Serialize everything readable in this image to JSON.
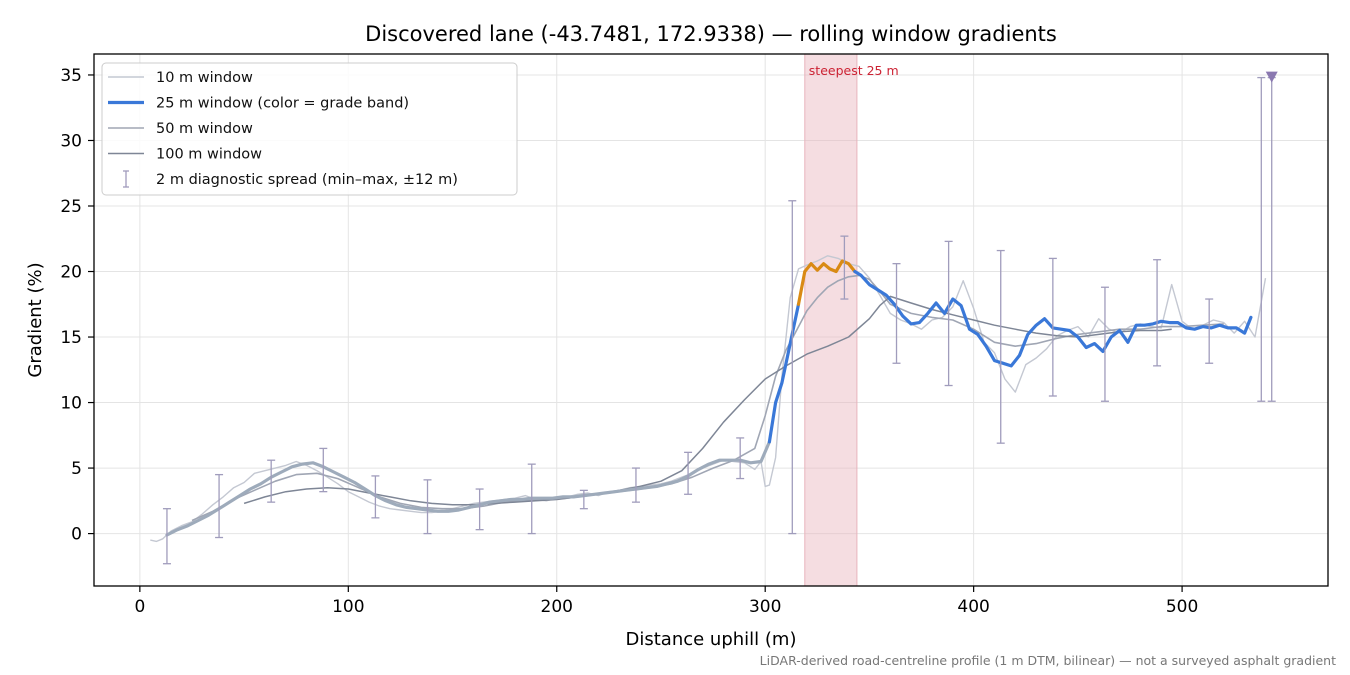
{
  "chart_data": {
    "type": "line",
    "title": "Discovered lane (-43.7481, 172.9338) — rolling window gradients",
    "xlabel": "Distance uphill (m)",
    "ylabel": "Gradient (%)",
    "xlim": [
      -22,
      570
    ],
    "ylim": [
      -4,
      36.6
    ],
    "xticks": [
      0,
      100,
      200,
      300,
      400,
      500
    ],
    "yticks": [
      0,
      5,
      10,
      15,
      20,
      25,
      30,
      35
    ],
    "grid": true,
    "legend_position": "upper-left",
    "footnote": "LiDAR-derived road-centreline profile (1 m DTM, bilinear) — not a surveyed asphalt gradient",
    "highlight": {
      "label": "steepest 25 m",
      "x_range": [
        319,
        344
      ]
    },
    "colors": {
      "w10": "#c4c8d2",
      "w25": "#3a78d8",
      "w25_steep": "#d98a14",
      "w25_early": "#9eabbb",
      "w50": "#a0a6b4",
      "w100": "#7e8696",
      "spread": "#a09cbc",
      "marker": "#8a78b0",
      "highlight": "#e8b4bc"
    },
    "marker": {
      "x": 543,
      "y": 34.8
    },
    "series": [
      {
        "name": "10 m window",
        "x": [
          5,
          8,
          11,
          15,
          20,
          25,
          30,
          35,
          40,
          45,
          50,
          55,
          60,
          65,
          70,
          75,
          80,
          85,
          90,
          95,
          100,
          105,
          110,
          115,
          120,
          125,
          130,
          135,
          140,
          145,
          150,
          155,
          160,
          165,
          170,
          175,
          180,
          185,
          190,
          195,
          200,
          205,
          210,
          215,
          220,
          225,
          230,
          235,
          240,
          245,
          250,
          255,
          260,
          265,
          270,
          275,
          280,
          285,
          290,
          295,
          298,
          300,
          302,
          305,
          308,
          312,
          316,
          320,
          325,
          330,
          335,
          340,
          345,
          350,
          355,
          360,
          365,
          370,
          375,
          380,
          385,
          390,
          395,
          400,
          405,
          410,
          415,
          420,
          425,
          430,
          435,
          440,
          445,
          450,
          455,
          460,
          465,
          470,
          475,
          480,
          485,
          490,
          495,
          500,
          505,
          510,
          515,
          520,
          525,
          530,
          535,
          540
        ],
        "y": [
          -0.5,
          -0.6,
          -0.4,
          0.2,
          0.6,
          0.9,
          1.5,
          2.2,
          2.8,
          3.5,
          3.9,
          4.6,
          4.8,
          5.0,
          5.2,
          5.5,
          5.2,
          4.8,
          4.3,
          3.8,
          3.2,
          2.8,
          2.4,
          2.1,
          1.9,
          1.8,
          1.7,
          1.6,
          1.6,
          1.7,
          1.9,
          2.1,
          2.3,
          2.4,
          2.5,
          2.6,
          2.7,
          2.9,
          2.6,
          2.5,
          2.7,
          2.8,
          3.0,
          3.1,
          2.9,
          3.2,
          3.3,
          3.5,
          3.6,
          3.7,
          3.8,
          4.0,
          4.3,
          4.6,
          5.0,
          5.3,
          5.6,
          5.5,
          5.4,
          4.9,
          5.5,
          3.6,
          3.7,
          5.8,
          12.0,
          18.0,
          20.2,
          20.5,
          20.8,
          21.2,
          21.0,
          20.6,
          20.4,
          19.5,
          18.2,
          16.8,
          16.3,
          16.0,
          15.6,
          16.3,
          16.5,
          17.3,
          19.3,
          17.2,
          14.6,
          13.8,
          11.8,
          10.8,
          12.9,
          13.4,
          14.1,
          15.1,
          15.5,
          15.8,
          15.0,
          16.4,
          15.6,
          15.3,
          15.8,
          16.0,
          15.8,
          15.7,
          19.0,
          16.2,
          15.6,
          15.9,
          16.3,
          16.1,
          15.3,
          16.2,
          15.0,
          19.5
        ]
      },
      {
        "name": "25 m window (color = grade band)",
        "x": [
          13,
          18,
          23,
          28,
          33,
          38,
          43,
          48,
          53,
          58,
          63,
          68,
          73,
          78,
          83,
          88,
          93,
          98,
          103,
          108,
          113,
          118,
          123,
          128,
          133,
          138,
          143,
          148,
          153,
          158,
          163,
          168,
          173,
          178,
          183,
          188,
          193,
          198,
          203,
          208,
          213,
          218,
          223,
          228,
          233,
          238,
          243,
          248,
          253,
          258,
          263,
          268,
          273,
          278,
          283,
          288,
          293,
          298,
          302,
          305,
          308,
          312,
          316,
          319,
          322,
          325,
          328,
          331,
          334,
          337,
          340,
          343,
          346,
          350,
          354,
          358,
          362,
          366,
          370,
          374,
          378,
          382,
          386,
          390,
          394,
          398,
          402,
          406,
          410,
          414,
          418,
          422,
          426,
          430,
          434,
          438,
          442,
          446,
          450,
          454,
          458,
          462,
          466,
          470,
          474,
          478,
          482,
          486,
          490,
          494,
          498,
          502,
          506,
          510,
          514,
          518,
          522,
          526,
          530,
          533
        ],
        "y": [
          -0.1,
          0.3,
          0.6,
          1.0,
          1.4,
          1.9,
          2.4,
          2.9,
          3.4,
          3.8,
          4.3,
          4.7,
          5.1,
          5.3,
          5.4,
          5.1,
          4.7,
          4.3,
          3.9,
          3.4,
          2.9,
          2.5,
          2.2,
          2.0,
          1.9,
          1.8,
          1.7,
          1.7,
          1.8,
          2.0,
          2.2,
          2.4,
          2.5,
          2.6,
          2.6,
          2.7,
          2.7,
          2.7,
          2.8,
          2.8,
          2.9,
          3.0,
          3.1,
          3.2,
          3.3,
          3.4,
          3.5,
          3.6,
          3.8,
          4.0,
          4.4,
          4.9,
          5.3,
          5.6,
          5.6,
          5.6,
          5.4,
          5.5,
          7.0,
          10.0,
          11.5,
          14.5,
          17.5,
          20.0,
          20.6,
          20.1,
          20.6,
          20.2,
          20.0,
          20.8,
          20.6,
          20.0,
          19.7,
          19.0,
          18.6,
          18.2,
          17.5,
          16.6,
          16.0,
          16.1,
          16.8,
          17.6,
          16.8,
          17.9,
          17.4,
          15.6,
          15.2,
          14.3,
          13.2,
          13.0,
          12.8,
          13.6,
          15.2,
          15.9,
          16.4,
          15.7,
          15.6,
          15.5,
          15.0,
          14.2,
          14.5,
          13.9,
          15.0,
          15.5,
          14.6,
          15.9,
          15.9,
          16.0,
          16.2,
          16.1,
          16.1,
          15.7,
          15.6,
          15.8,
          15.7,
          15.9,
          15.7,
          15.7,
          15.3,
          16.5
        ]
      },
      {
        "name": "50 m window",
        "x": [
          25,
          35,
          45,
          55,
          65,
          75,
          85,
          95,
          105,
          115,
          125,
          135,
          145,
          155,
          165,
          175,
          185,
          195,
          205,
          215,
          225,
          235,
          245,
          255,
          265,
          275,
          285,
          295,
          300,
          305,
          310,
          315,
          320,
          325,
          330,
          335,
          340,
          345,
          350,
          355,
          360,
          370,
          380,
          390,
          400,
          410,
          420,
          430,
          440,
          450,
          460,
          470,
          480,
          490,
          500,
          510,
          520
        ],
        "y": [
          1.0,
          1.7,
          2.6,
          3.3,
          4.0,
          4.5,
          4.6,
          4.2,
          3.5,
          2.8,
          2.3,
          2.0,
          1.9,
          1.9,
          2.1,
          2.4,
          2.5,
          2.6,
          2.7,
          2.9,
          3.1,
          3.3,
          3.5,
          3.8,
          4.3,
          5.0,
          5.6,
          6.5,
          9.0,
          12.0,
          14.0,
          15.5,
          17.0,
          18.0,
          18.8,
          19.3,
          19.6,
          19.7,
          19.4,
          18.5,
          17.5,
          16.8,
          16.5,
          16.3,
          15.6,
          14.6,
          14.3,
          14.5,
          14.9,
          15.2,
          15.4,
          15.6,
          15.6,
          15.8,
          15.8,
          15.9,
          16.0
        ]
      },
      {
        "name": "100 m window",
        "x": [
          50,
          60,
          70,
          80,
          90,
          100,
          110,
          120,
          130,
          140,
          150,
          160,
          170,
          180,
          190,
          200,
          210,
          220,
          230,
          240,
          250,
          260,
          270,
          280,
          290,
          300,
          310,
          320,
          330,
          340,
          350,
          355,
          360,
          370,
          380,
          390,
          400,
          410,
          420,
          430,
          440,
          450,
          460,
          470,
          480,
          490,
          495
        ],
        "y": [
          2.3,
          2.8,
          3.2,
          3.4,
          3.5,
          3.4,
          3.1,
          2.8,
          2.5,
          2.3,
          2.2,
          2.2,
          2.3,
          2.4,
          2.5,
          2.6,
          2.8,
          3.0,
          3.3,
          3.6,
          4.0,
          4.8,
          6.5,
          8.5,
          10.2,
          11.8,
          12.8,
          13.7,
          14.3,
          15.0,
          16.4,
          17.4,
          18.1,
          17.6,
          17.1,
          16.7,
          16.3,
          15.9,
          15.6,
          15.3,
          15.1,
          15.0,
          15.2,
          15.4,
          15.5,
          15.5,
          15.6
        ]
      }
    ],
    "errorbars": {
      "name": "2 m diagnostic spread (min–max, ±12 m)",
      "x": [
        13,
        38,
        63,
        88,
        113,
        138,
        163,
        188,
        213,
        238,
        263,
        288,
        313,
        338,
        363,
        388,
        413,
        438,
        463,
        488,
        513,
        538,
        543
      ],
      "low": [
        -2.3,
        -0.3,
        2.4,
        3.2,
        1.2,
        0.0,
        0.3,
        0.0,
        1.9,
        2.4,
        3.0,
        4.2,
        0.0,
        17.9,
        13.0,
        11.3,
        6.9,
        10.5,
        10.1,
        12.8,
        13.0,
        10.1,
        10.1
      ],
      "high": [
        1.9,
        4.5,
        5.6,
        6.5,
        4.4,
        4.1,
        3.4,
        5.3,
        3.3,
        5.0,
        6.2,
        7.3,
        25.4,
        22.7,
        20.6,
        22.3,
        21.6,
        21.0,
        18.8,
        20.9,
        17.9,
        34.8,
        34.8
      ]
    }
  }
}
